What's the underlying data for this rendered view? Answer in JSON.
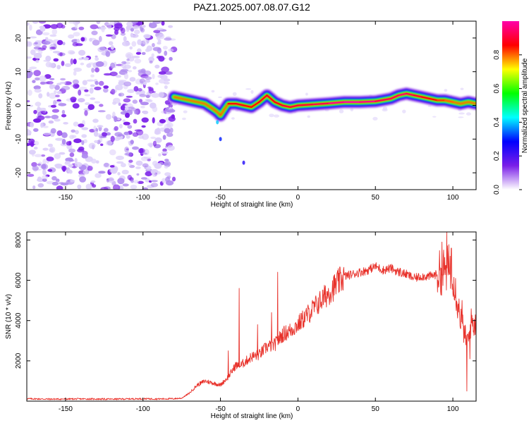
{
  "title": "PAZ1.2025.007.08.07.G12",
  "chart_data": [
    {
      "type": "heatmap",
      "xlabel": "Height of straight line (km)",
      "ylabel": "Frequency (Hz)",
      "xlim": [
        -175,
        115
      ],
      "ylim": [
        -25,
        25
      ],
      "xticks": [
        -150,
        -100,
        -50,
        0,
        50,
        100
      ],
      "yticks": [
        -20,
        -10,
        0,
        10,
        20
      ],
      "colorbar": {
        "label": "Normalized spectral amplitude",
        "range": [
          0,
          1
        ],
        "ticks": [
          "0.0",
          "0.2",
          "0.4",
          "0.6",
          "0.8"
        ],
        "colors": [
          "#ffffff",
          "#7a1ee8",
          "#0000ff",
          "#00ffff",
          "#00ff00",
          "#ffff00",
          "#ff0000",
          "#ff00aa"
        ]
      },
      "ridge": {
        "x": [
          -80,
          -70,
          -60,
          -55,
          -52,
          -50,
          -48,
          -45,
          -40,
          -35,
          -30,
          -25,
          -20,
          -15,
          -10,
          -5,
          0,
          10,
          20,
          30,
          40,
          50,
          60,
          65,
          70,
          75,
          80,
          85,
          90,
          95,
          100,
          105,
          110,
          115
        ],
        "frequency": [
          2.5,
          1.5,
          0.5,
          -1.0,
          -2.0,
          -3.0,
          -1.5,
          0.5,
          0.5,
          0.0,
          -0.5,
          1.0,
          3.0,
          1.0,
          0.0,
          -0.5,
          0.0,
          0.3,
          0.6,
          1.0,
          1.0,
          1.2,
          2.0,
          3.0,
          3.5,
          3.0,
          2.5,
          2.0,
          1.5,
          1.5,
          1.0,
          0.5,
          1.0,
          0.5
        ],
        "amplitude": [
          0.45,
          0.6,
          0.6,
          0.55,
          0.5,
          0.5,
          0.55,
          0.8,
          0.9,
          0.85,
          0.85,
          0.85,
          0.9,
          0.85,
          0.9,
          0.9,
          0.9,
          0.9,
          0.95,
          1.0,
          1.0,
          0.95,
          0.9,
          0.95,
          0.95,
          0.9,
          0.9,
          0.85,
          0.85,
          0.8,
          0.8,
          0.75,
          0.7,
          0.6
        ]
      },
      "noise_region_x": [
        -175,
        -80
      ]
    },
    {
      "type": "line",
      "xlabel": "Height of straight line (km)",
      "ylabel": "SNR (10 * v/v)",
      "xlim": [
        -175,
        115
      ],
      "ylim": [
        0,
        8400
      ],
      "xticks": [
        -150,
        -100,
        -50,
        0,
        50,
        100
      ],
      "yticks": [
        2000,
        4000,
        6000,
        8000
      ],
      "color": "#e8312a",
      "x": [
        -175,
        -160,
        -140,
        -120,
        -100,
        -90,
        -80,
        -75,
        -70,
        -65,
        -60,
        -55,
        -50,
        -45,
        -40,
        -38,
        -35,
        -30,
        -25,
        -20,
        -15,
        -10,
        -5,
        0,
        5,
        10,
        15,
        20,
        25,
        30,
        35,
        40,
        45,
        50,
        55,
        60,
        65,
        70,
        75,
        80,
        85,
        90,
        95,
        98,
        100,
        102,
        104,
        106,
        108,
        110,
        112,
        115
      ],
      "values": [
        120,
        100,
        110,
        100,
        120,
        110,
        120,
        150,
        400,
        800,
        1000,
        900,
        800,
        1200,
        1800,
        1700,
        1900,
        2200,
        2300,
        2700,
        2800,
        3300,
        3500,
        3800,
        4200,
        4600,
        5000,
        5400,
        5800,
        6200,
        6300,
        6400,
        6500,
        6700,
        6500,
        6600,
        6400,
        6300,
        6100,
        6200,
        6200,
        6300,
        6500,
        6700,
        6400,
        5400,
        4500,
        3800,
        3200,
        3000,
        4000,
        3700
      ],
      "spikes": [
        {
          "x": -45,
          "value": 2500
        },
        {
          "x": -38,
          "value": 5600
        },
        {
          "x": -26,
          "value": 3800
        },
        {
          "x": -17,
          "value": 4400
        },
        {
          "x": -13,
          "value": 6400
        },
        {
          "x": 66,
          "value": 6600
        },
        {
          "x": 96,
          "value": 8400
        },
        {
          "x": 93,
          "value": 7900
        },
        {
          "x": 99,
          "value": 7600
        },
        {
          "x": 109,
          "value": 500
        },
        {
          "x": 106,
          "value": 5000
        },
        {
          "x": 111,
          "value": 2100
        }
      ]
    }
  ]
}
